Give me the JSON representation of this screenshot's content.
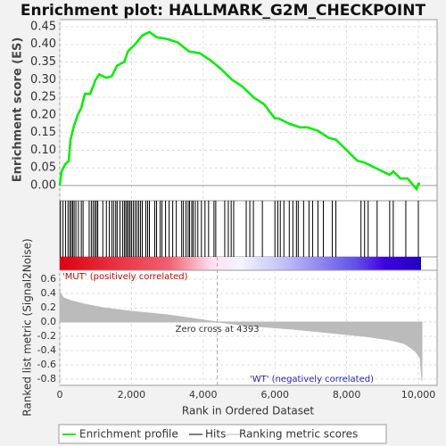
{
  "chart_data": [
    {
      "type": "line",
      "title": "Enrichment plot: HALLMARK_G2M_CHECKPOINT",
      "ylabel": "Enrichment score (ES)",
      "ylim": [
        -0.043,
        0.47
      ],
      "yticks": [
        {
          "value": 0,
          "label": "0.00"
        },
        {
          "value": 0.05,
          "label": "0.05"
        },
        {
          "value": 0.1,
          "label": "0.10"
        },
        {
          "value": 0.15,
          "label": "0.15"
        },
        {
          "value": 0.2,
          "label": "0.20"
        },
        {
          "value": 0.25,
          "label": "0.25"
        },
        {
          "value": 0.3,
          "label": "0.30"
        },
        {
          "value": 0.35,
          "label": "0.35"
        },
        {
          "value": 0.4,
          "label": "0.40"
        },
        {
          "value": 0.45,
          "label": "0.45"
        }
      ],
      "series": [
        {
          "name": "Enrichment profile",
          "color": "#00ee00",
          "x": [
            0,
            50,
            150,
            250,
            300,
            400,
            500,
            600,
            700,
            850,
            1000,
            1100,
            1300,
            1450,
            1600,
            1800,
            1900,
            2100,
            2300,
            2500,
            2700,
            3000,
            3300,
            3600,
            3900,
            4200,
            4500,
            4800,
            5100,
            5400,
            5700,
            6000,
            6100,
            6400,
            6700,
            6900,
            7200,
            7500,
            7700,
            8000,
            8300,
            8500,
            8800,
            9000,
            9200,
            9300,
            9500,
            9700,
            9950,
            10000,
            10050
          ],
          "values": [
            0,
            0.04,
            0.06,
            0.07,
            0.13,
            0.17,
            0.2,
            0.22,
            0.26,
            0.26,
            0.3,
            0.315,
            0.305,
            0.31,
            0.34,
            0.35,
            0.38,
            0.4,
            0.425,
            0.435,
            0.42,
            0.415,
            0.405,
            0.38,
            0.375,
            0.355,
            0.33,
            0.3,
            0.28,
            0.25,
            0.23,
            0.19,
            0.19,
            0.175,
            0.165,
            0.165,
            0.155,
            0.135,
            0.13,
            0.1,
            0.07,
            0.065,
            0.05,
            0.04,
            0.03,
            0.04,
            0.02,
            0.02,
            -0.01,
            0.005,
            0.005
          ]
        }
      ]
    },
    {
      "type": "rug",
      "series": [
        {
          "name": "Hits",
          "color": "#000000",
          "x": [
            20,
            90,
            160,
            230,
            280,
            320,
            360,
            400,
            450,
            520,
            600,
            650,
            820,
            880,
            930,
            980,
            1020,
            1060,
            1200,
            1300,
            1380,
            1450,
            1500,
            1560,
            1600,
            1680,
            1750,
            1800,
            1840,
            1880,
            1920,
            1960,
            2000,
            2050,
            2100,
            2150,
            2200,
            2250,
            2300,
            2400,
            2450,
            2500,
            2650,
            2700,
            2800,
            2850,
            2950,
            3050,
            3150,
            3250,
            3400,
            3450,
            3520,
            3580,
            3620,
            3680,
            3720,
            3780,
            3850,
            3950,
            4050,
            4150,
            4300,
            4350,
            4600,
            4700,
            4780,
            4850,
            5200,
            5300,
            5400,
            5650,
            6000,
            6080,
            6150,
            6250,
            6400,
            6500,
            6600,
            6650,
            6800,
            6950,
            7050,
            7200,
            7350,
            7600,
            7700,
            8400,
            8500,
            8600,
            8850,
            9200,
            9300,
            9650,
            10000
          ]
        }
      ]
    },
    {
      "type": "area",
      "ylabel": "Ranked list metric (Signal2Noise)",
      "xlabel": "Rank in Ordered Dataset",
      "xlim": [
        0,
        10522
      ],
      "xticks": [
        0,
        {
          "value": 2000,
          "label": "2,000"
        },
        {
          "value": 4000,
          "label": "4,000"
        },
        {
          "value": 6000,
          "label": "6,000"
        },
        {
          "value": 8000,
          "label": "8,000"
        },
        {
          "value": 10000,
          "label": "10,000"
        }
      ],
      "ylim": [
        -0.8875,
        0.725
      ],
      "yticks": [
        0.6,
        0.4,
        0.2,
        {
          "value": 0,
          "label": "0.0"
        },
        -0.2,
        -0.4,
        -0.6,
        -0.8
      ],
      "series": [
        {
          "name": "Ranking metric scores",
          "color": "#bbbbbb",
          "x": [
            0,
            100,
            300,
            700,
            1200,
            2000,
            3000,
            3700,
            4393,
            5200,
            6500,
            7500,
            8500,
            9200,
            9600,
            9900,
            10050,
            10100
          ],
          "values": [
            0.42,
            0.34,
            0.3,
            0.25,
            0.2,
            0.15,
            0.1,
            0.05,
            0,
            -0.05,
            -0.1,
            -0.15,
            -0.2,
            -0.25,
            -0.3,
            -0.4,
            -0.5,
            -0.82
          ]
        }
      ],
      "zero_cross": 4393,
      "annotations": {
        "zero": "Zero cross at 4393",
        "pos": "'MUT' (positively correlated)",
        "neg": "'WT' (negatively correlated)"
      }
    }
  ]
}
